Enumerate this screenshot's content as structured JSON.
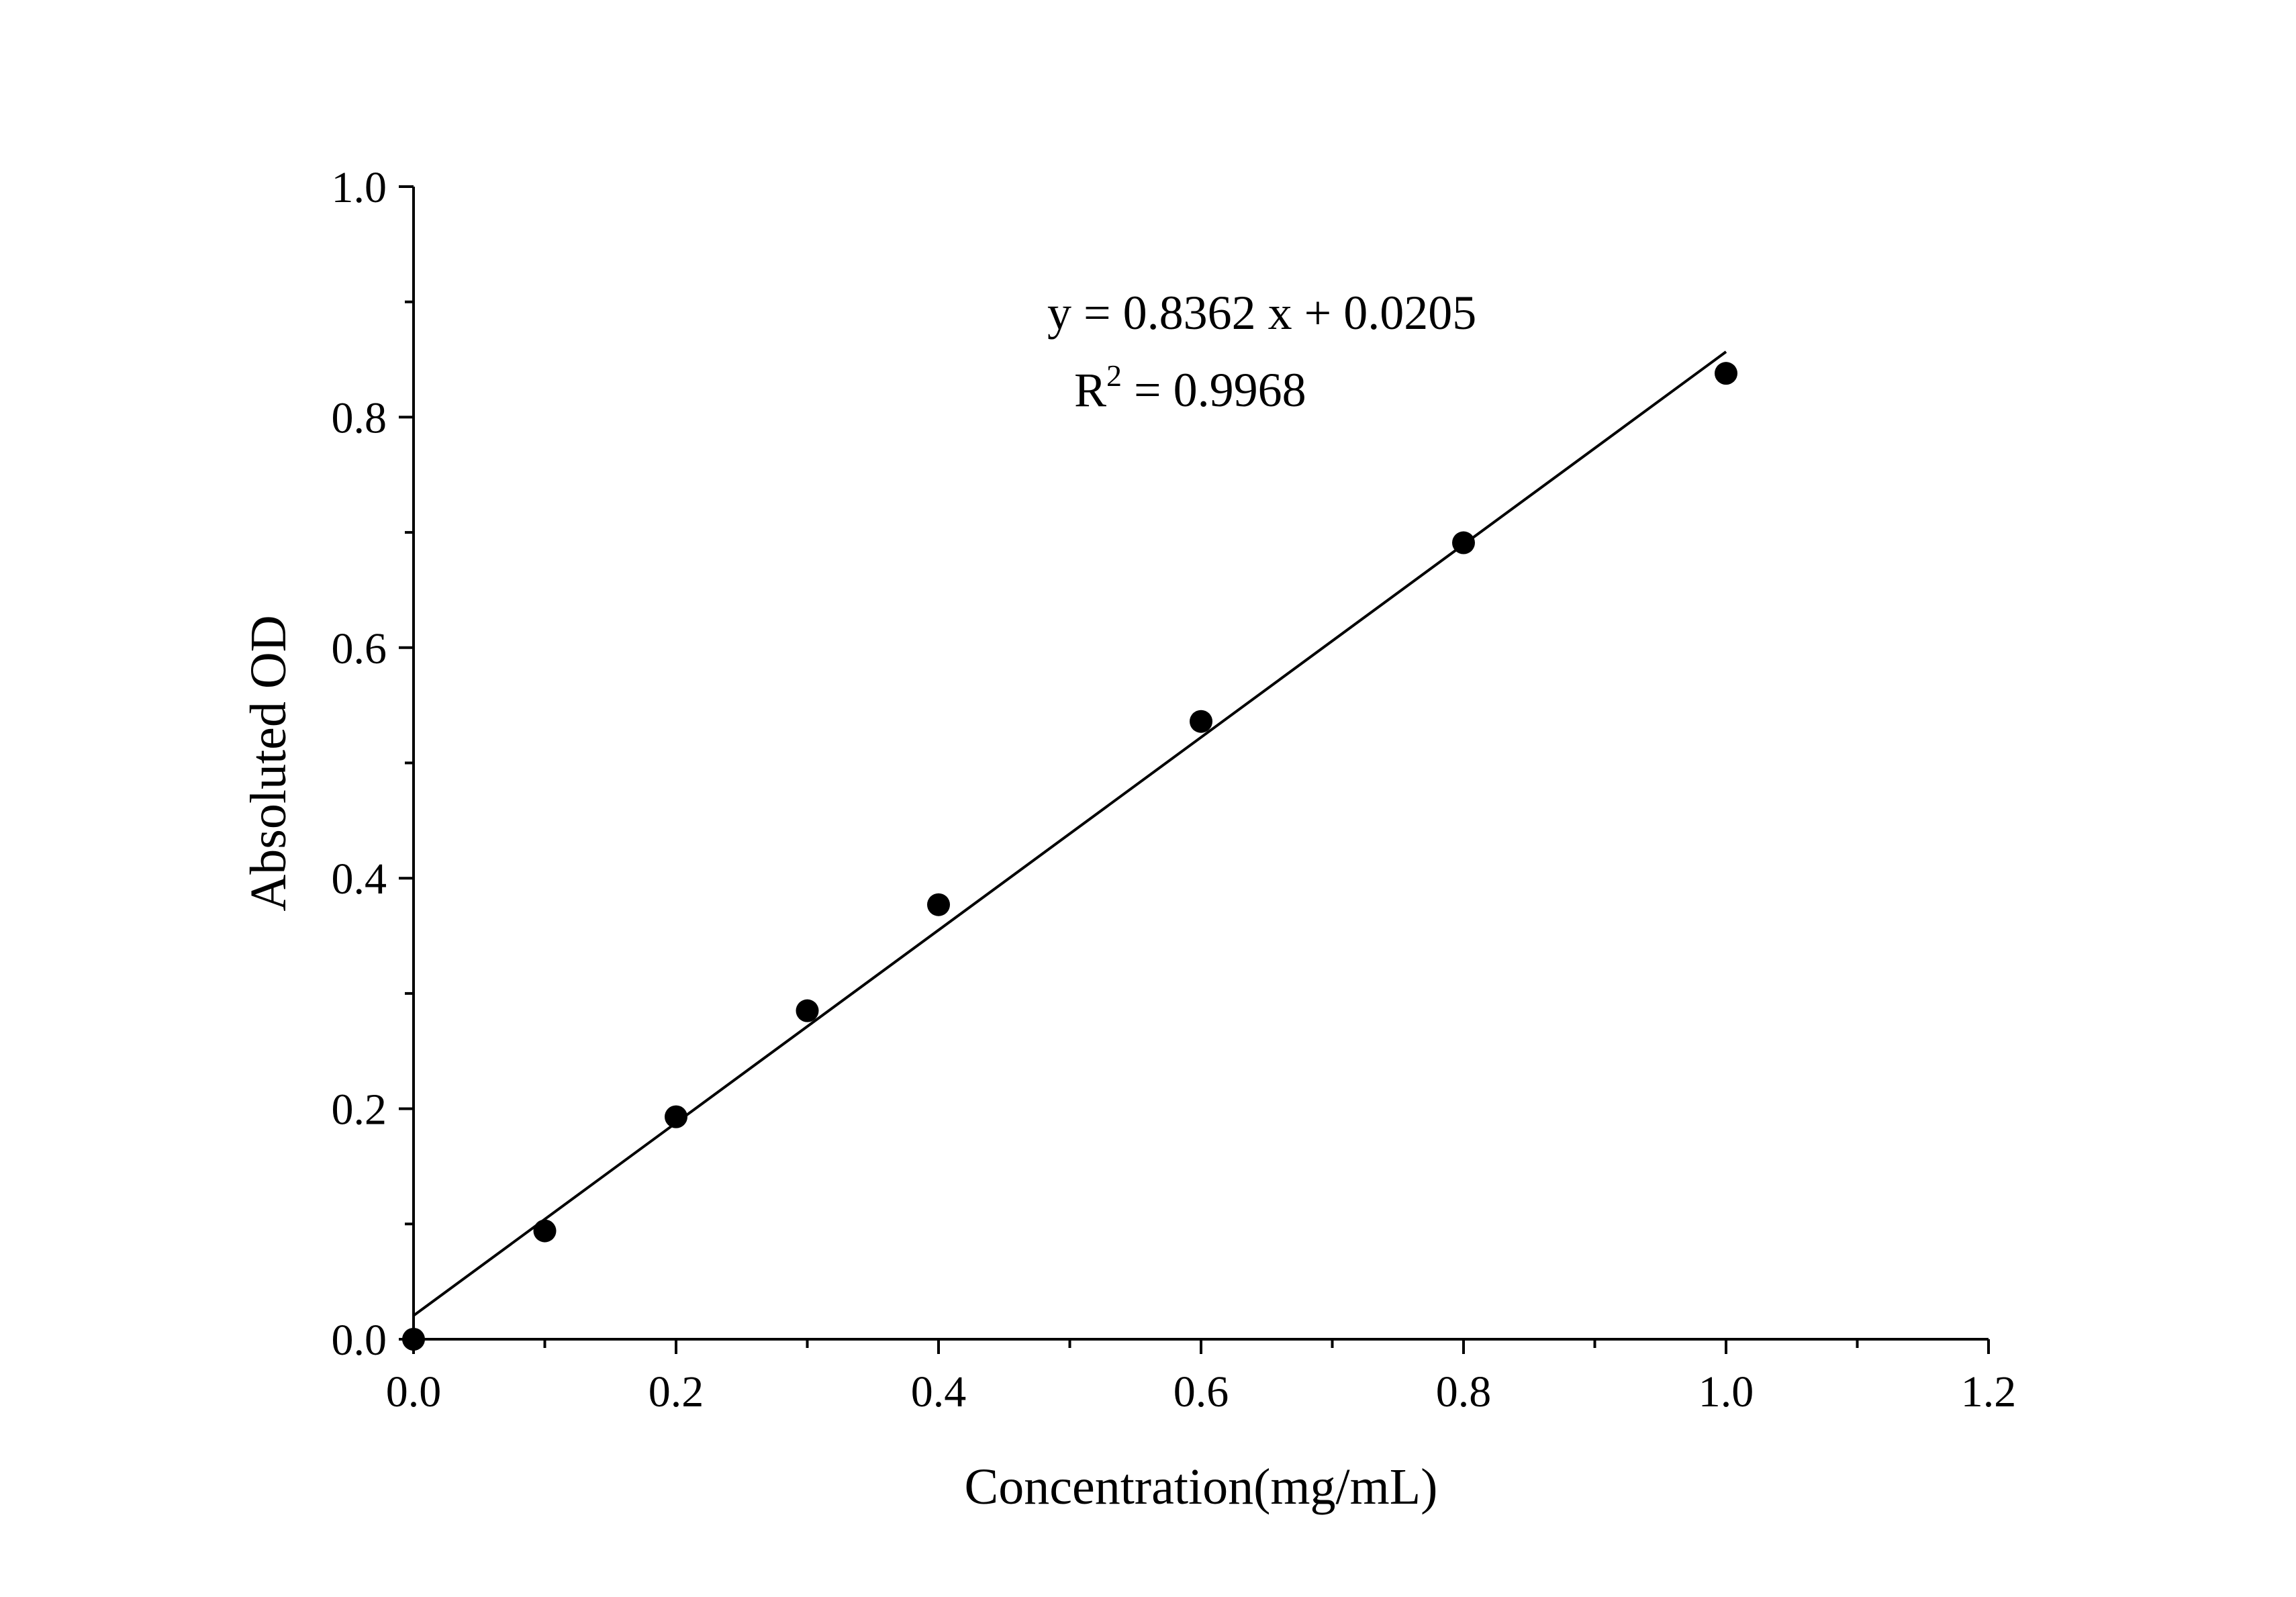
{
  "chart_data": {
    "type": "scatter",
    "title": "",
    "xlabel": "Concentration(mg/mL)",
    "ylabel": "Absoluted OD",
    "xlim": [
      0,
      1.2
    ],
    "ylim": [
      0,
      1.0
    ],
    "x_ticks": [
      "0.0",
      "0.2",
      "0.4",
      "0.6",
      "0.8",
      "1.0",
      "1.2"
    ],
    "y_ticks": [
      "0.0",
      "0.2",
      "0.4",
      "0.6",
      "0.8",
      "1.0"
    ],
    "grid": false,
    "series": [
      {
        "name": "data",
        "x": [
          0,
          0.1,
          0.2,
          0.3,
          0.4,
          0.6,
          0.8,
          1.0
        ],
        "y": [
          0.0,
          0.094,
          0.193,
          0.285,
          0.377,
          0.536,
          0.691,
          0.838
        ]
      }
    ],
    "fit": {
      "slope": 0.8362,
      "intercept": 0.0205,
      "x_range": [
        0,
        1.0
      ]
    },
    "annotations": {
      "equation": "y = 0.8362 x + 0.0205",
      "r2_label": "R",
      "r2_sup": "2",
      "r2_value": " = 0.9968"
    }
  }
}
